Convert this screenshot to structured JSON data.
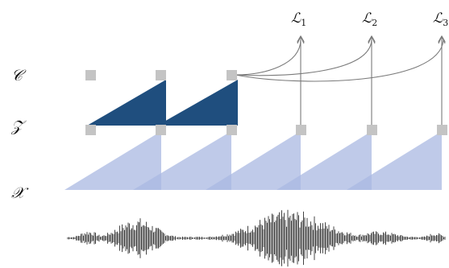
{
  "rows": {
    "c_label": "𝒞",
    "z_label": "𝒵",
    "x_label": "𝒳"
  },
  "losses": [
    {
      "base": "ℒ",
      "sub": "1"
    },
    {
      "base": "ℒ",
      "sub": "2"
    },
    {
      "base": "ℒ",
      "sub": "3"
    }
  ],
  "colors": {
    "context_triangle": "#1f4e7e",
    "encoder_triangle": "#aab8e2",
    "node": "#c4c4c4",
    "connector": "#7a7a7a",
    "waveform": "#444444"
  }
}
